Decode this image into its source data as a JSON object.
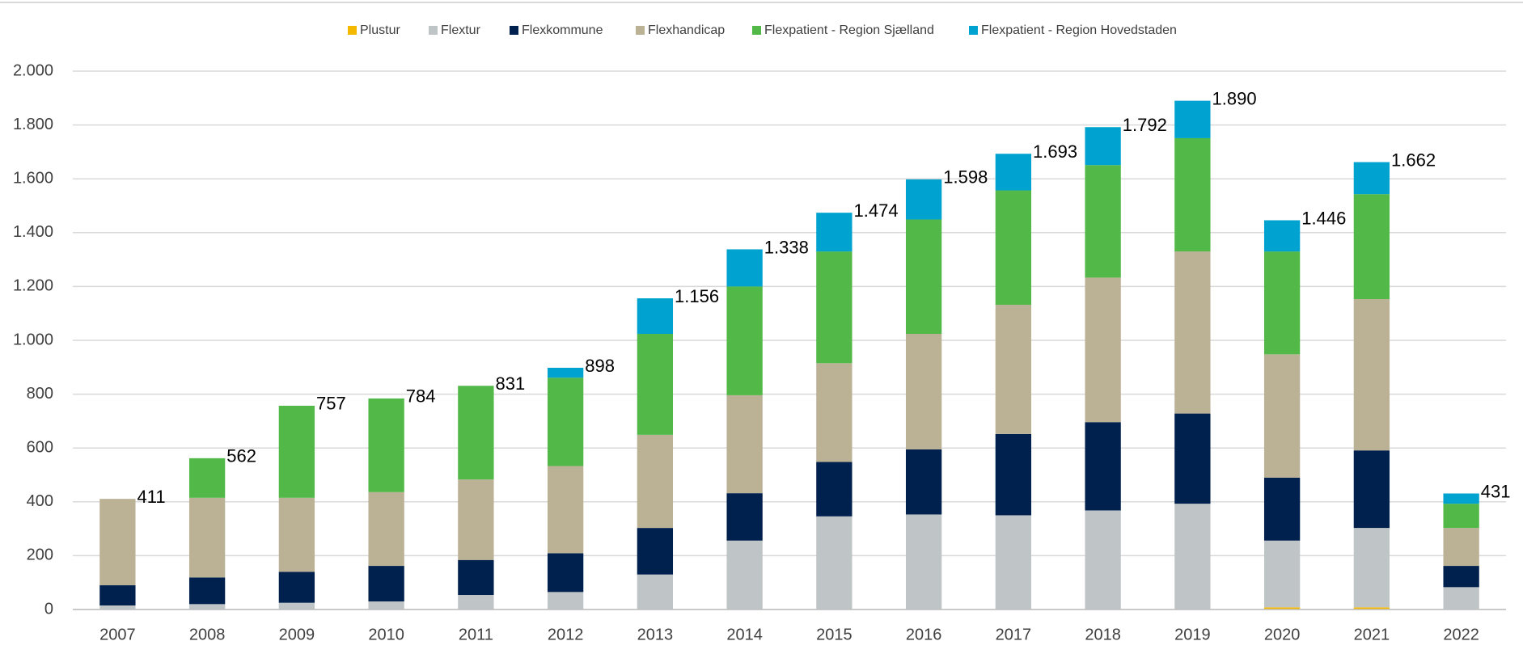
{
  "chart_data": {
    "type": "stacked_bar",
    "categories": [
      "2007",
      "2008",
      "2009",
      "2010",
      "2011",
      "2012",
      "2013",
      "2014",
      "2015",
      "2016",
      "2017",
      "2018",
      "2019",
      "2020",
      "2021",
      "2022"
    ],
    "series": [
      {
        "name": "Plustur",
        "color": "#f5b800",
        "values": [
          0,
          0,
          0,
          0,
          0,
          0,
          0,
          0,
          0,
          0,
          0,
          0,
          0,
          8,
          8,
          0
        ]
      },
      {
        "name": "Flextur",
        "color": "#bfc4c6",
        "values": [
          15,
          20,
          25,
          30,
          54,
          65,
          130,
          256,
          346,
          353,
          350,
          368,
          393,
          248,
          295,
          83
        ]
      },
      {
        "name": "Flexkommune",
        "color": "#00204e",
        "values": [
          75,
          99,
          115,
          132,
          130,
          144,
          173,
          176,
          202,
          242,
          302,
          328,
          335,
          234,
          288,
          79
        ]
      },
      {
        "name": "Flexhandicap",
        "color": "#bbb195",
        "values": [
          321,
          296,
          275,
          274,
          299,
          324,
          346,
          364,
          367,
          429,
          480,
          537,
          602,
          458,
          562,
          141
        ]
      },
      {
        "name": "Flexpatient - Region Sjælland",
        "color": "#52b848",
        "values": [
          0,
          147,
          342,
          348,
          348,
          328,
          375,
          404,
          415,
          425,
          425,
          418,
          421,
          382,
          390,
          90
        ]
      },
      {
        "name": "Flexpatient - Region Hovedstaden",
        "color": "#00a3d0",
        "values": [
          0,
          0,
          0,
          0,
          0,
          37,
          132,
          138,
          144,
          149,
          136,
          141,
          139,
          116,
          119,
          38
        ]
      }
    ],
    "totals": {
      "values": [
        411,
        562,
        757,
        784,
        831,
        898,
        1156,
        1338,
        1474,
        1598,
        1693,
        1792,
        1890,
        1446,
        1662,
        431
      ],
      "value_labels": [
        "411",
        "562",
        "757",
        "784",
        "831",
        "898",
        "1.156",
        "1.338",
        "1.474",
        "1.598",
        "1.693",
        "1.792",
        "1.890",
        "1.446",
        "1.662",
        "431"
      ]
    },
    "ylim": [
      0,
      2000
    ],
    "yticks": [
      0,
      200,
      400,
      600,
      800,
      {
        "value": 1000,
        "label": "1.000"
      },
      {
        "value": 1200,
        "label": "1.200"
      },
      {
        "value": 1400,
        "label": "1.400"
      },
      {
        "value": 1600,
        "label": "1.600"
      },
      {
        "value": 1800,
        "label": "1.800"
      },
      {
        "value": 2000,
        "label": "2.000"
      }
    ],
    "grid": true
  }
}
